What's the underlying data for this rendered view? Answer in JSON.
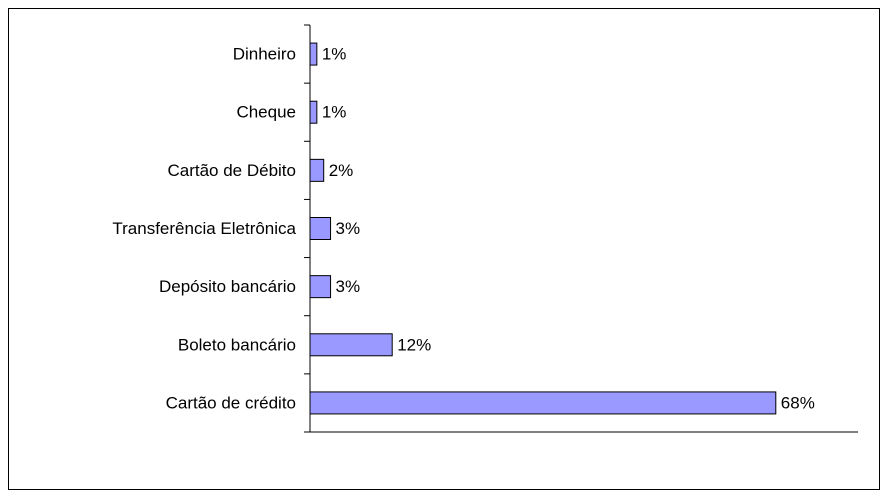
{
  "chart_data": {
    "type": "bar",
    "orientation": "horizontal",
    "categories": [
      "Dinheiro",
      "Cheque",
      "Cartão de Débito",
      "Transferência Eletrônica",
      "Depósito bancário",
      "Boleto bancário",
      "Cartão de crédito"
    ],
    "values": [
      1,
      1,
      2,
      3,
      3,
      12,
      68
    ],
    "value_labels": [
      "1%",
      "1%",
      "2%",
      "3%",
      "3%",
      "12%",
      "68%"
    ],
    "color": "#9999ff",
    "xlim": [
      0,
      80
    ]
  }
}
